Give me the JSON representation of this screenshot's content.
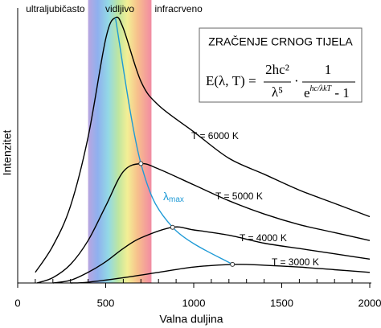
{
  "chart_data": {
    "type": "line",
    "x_label": "Valna duljina",
    "y_label": "Intenzitet",
    "xlim": [
      0,
      2000
    ],
    "ylim": [
      0,
      100
    ],
    "xticks": [
      0,
      500,
      1000,
      1500,
      2000
    ],
    "xminorticks": [
      100,
      200,
      300,
      400,
      600,
      700,
      800,
      900,
      1100,
      1200,
      1300,
      1400,
      1600,
      1700,
      1800,
      1900
    ],
    "series": [
      {
        "name": "T = 6000 K",
        "color": "#000000",
        "x": [
          100,
          200,
          300,
          400,
          500,
          555,
          600,
          700,
          800,
          1000,
          1200,
          1400,
          1600,
          1800,
          2000
        ],
        "values": [
          4,
          14,
          29,
          55,
          92,
          100,
          96,
          76,
          67,
          57,
          47,
          41,
          35,
          30,
          25
        ]
      },
      {
        "name": "T = 5000 K",
        "color": "#000000",
        "x": [
          110,
          200,
          300,
          400,
          500,
          600,
          700,
          800,
          1000,
          1200,
          1400,
          1600,
          1800,
          2000
        ],
        "values": [
          0,
          2,
          7,
          16,
          29,
          42,
          45,
          43,
          37,
          31,
          26,
          22,
          19,
          16
        ]
      },
      {
        "name": "T = 4000 K",
        "color": "#000000",
        "x": [
          200,
          300,
          400,
          500,
          600,
          700,
          880,
          1000,
          1200,
          1400,
          1600,
          1800,
          2000
        ],
        "values": [
          0,
          1,
          4,
          8,
          13,
          17,
          21,
          20,
          18,
          15,
          13,
          11,
          9
        ]
      },
      {
        "name": "T = 3000 K",
        "color": "#000000",
        "x": [
          300,
          400,
          600,
          800,
          1000,
          1220,
          1400,
          1600,
          1800,
          2000
        ],
        "values": [
          0,
          0.3,
          2,
          4,
          6,
          7,
          6.7,
          6,
          5,
          4
        ]
      }
    ],
    "peak_line": {
      "symbol": "λ",
      "subscript": "max",
      "color": "#1e9ad6",
      "x": [
        555,
        700,
        880,
        1220
      ],
      "values": [
        100,
        45,
        21,
        7
      ]
    },
    "bands": [
      {
        "label": "ultraljubičasto"
      },
      {
        "label": "vidljivo",
        "range": [
          400,
          760
        ]
      },
      {
        "label": "infracrveno"
      }
    ],
    "formula": {
      "title": "ZRAČENJE CRNOG TIJELA",
      "lhs": "E(λ, T) =",
      "numerator1": "2hc²",
      "denominator1": "λ⁵",
      "dot": "·",
      "numerator2": "1",
      "exp_base": "e",
      "exponent": "hc/λkT",
      "minus_one": " - 1"
    }
  }
}
